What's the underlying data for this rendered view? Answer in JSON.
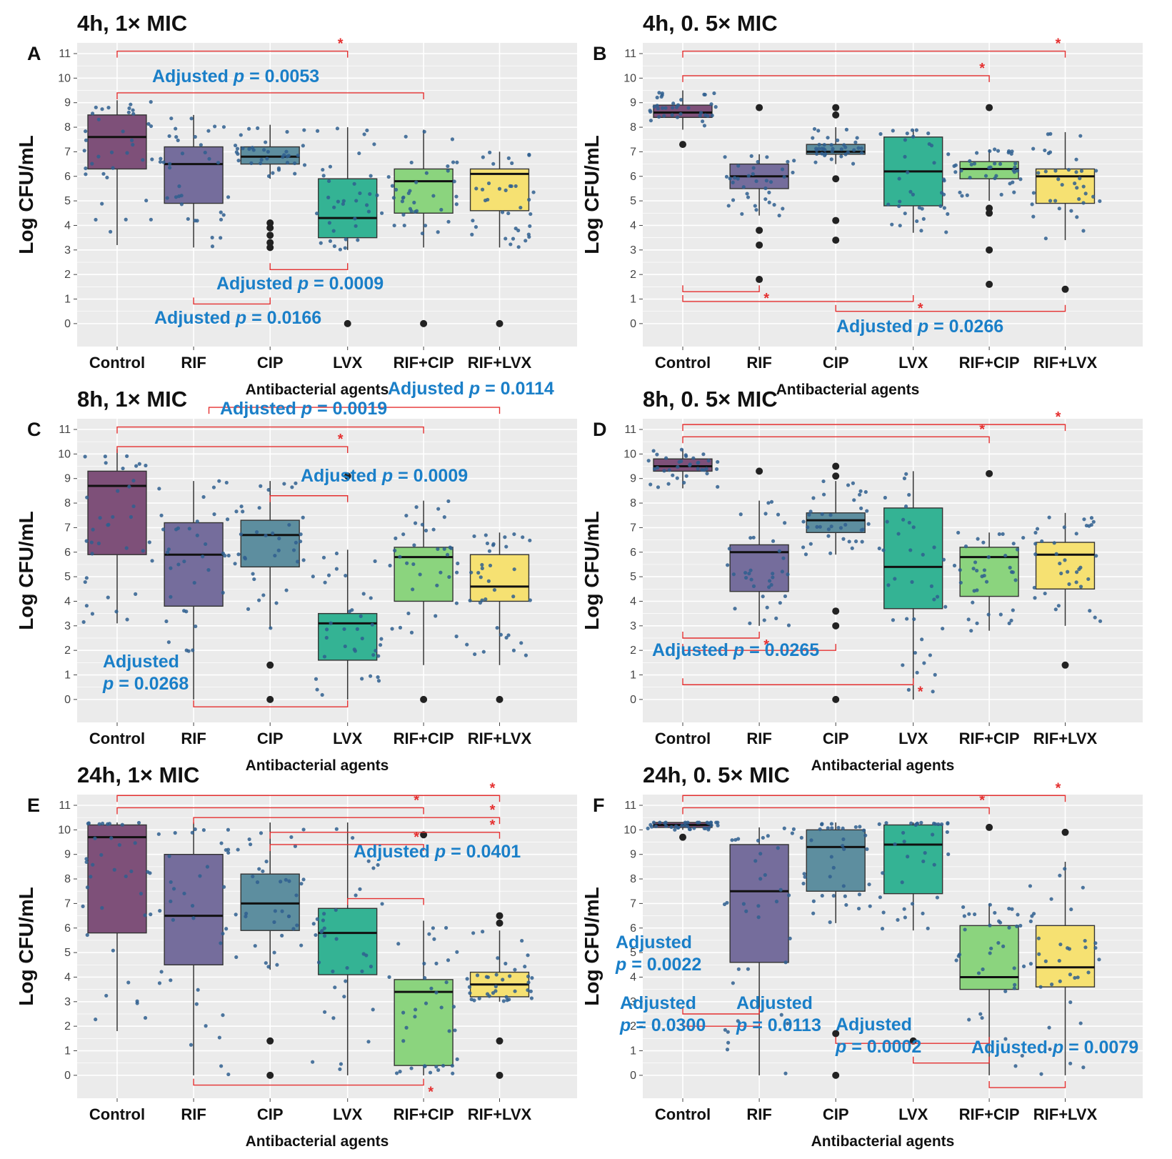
{
  "figure": {
    "ylabel": "Log CFU/mL",
    "xlabel": "Antibacterial agents",
    "yticks": [
      "0",
      "1",
      "2",
      "3",
      "4",
      "5",
      "6",
      "7",
      "8",
      "9",
      "10",
      "11"
    ],
    "colors": {
      "panel_bg": "#ebebeb",
      "grid": "#ffffff",
      "point": "#2f5f8f",
      "outlier": "#222222",
      "bracket": "#e53030",
      "annotation": "#1a7fc8",
      "fill": [
        "#7e5079",
        "#756d9c",
        "#5d8e9f",
        "#34b394",
        "#8bd47e",
        "#f6e172"
      ]
    }
  },
  "chart_data": [
    {
      "panel": "A",
      "type": "box",
      "title": "4h, 1× MIC",
      "categories": [
        "Control",
        "RIF",
        "CIP",
        "LVX",
        "RIF+CIP",
        "RIF+LVX"
      ],
      "xlabel": "Antibacterial agents",
      "ylabel": "Log CFU/mL",
      "ylim": [
        -0.5,
        11.5
      ],
      "boxes": [
        {
          "q1": 6.3,
          "median": 7.6,
          "q3": 8.5,
          "low": 3.2,
          "high": 9.1,
          "outliers": []
        },
        {
          "q1": 4.9,
          "median": 6.5,
          "q3": 7.2,
          "low": 3.1,
          "high": 8.5,
          "outliers": []
        },
        {
          "q1": 6.5,
          "median": 6.8,
          "q3": 7.2,
          "low": 5.9,
          "high": 8.1,
          "outliers": [
            3.1,
            3.3,
            3.6,
            3.9,
            4.1
          ]
        },
        {
          "q1": 3.5,
          "median": 4.3,
          "q3": 5.9,
          "low": 3.0,
          "high": 8.0,
          "outliers": [
            0
          ]
        },
        {
          "q1": 4.5,
          "median": 5.8,
          "q3": 6.3,
          "low": 3.1,
          "high": 7.9,
          "outliers": [
            0
          ]
        },
        {
          "q1": 4.6,
          "median": 6.1,
          "q3": 6.3,
          "low": 3.1,
          "high": 7.0,
          "outliers": [
            0
          ]
        }
      ],
      "annotations": [
        {
          "text": "Adjusted",
          "p": "p",
          "value": "= 0.0053"
        },
        {
          "text": "Adjusted",
          "p": "p",
          "value": "= 0.0009"
        },
        {
          "text": "Adjusted",
          "p": "p",
          "value": "= 0.0166"
        }
      ],
      "stars": [
        "*"
      ]
    },
    {
      "panel": "B",
      "type": "box",
      "title": "4h, 0. 5× MIC",
      "categories": [
        "Control",
        "RIF",
        "CIP",
        "LVX",
        "RIF+CIP",
        "RIF+LVX"
      ],
      "xlabel": "Antibacterial agents",
      "ylabel": "Log CFU/mL",
      "ylim": [
        -0.5,
        11.5
      ],
      "boxes": [
        {
          "q1": 8.4,
          "median": 8.6,
          "q3": 8.9,
          "low": 7.9,
          "high": 9.5,
          "outliers": [
            7.3
          ]
        },
        {
          "q1": 5.5,
          "median": 6.0,
          "q3": 6.5,
          "low": 4.4,
          "high": 6.9,
          "outliers": [
            1.8,
            3.2,
            3.8,
            8.8
          ]
        },
        {
          "q1": 6.9,
          "median": 7.0,
          "q3": 7.3,
          "low": 6.5,
          "high": 8.0,
          "outliers": [
            3.4,
            4.2,
            5.9,
            8.5,
            8.8
          ]
        },
        {
          "q1": 4.8,
          "median": 6.2,
          "q3": 7.6,
          "low": 3.7,
          "high": 7.9,
          "outliers": []
        },
        {
          "q1": 5.9,
          "median": 6.3,
          "q3": 6.6,
          "low": 5.0,
          "high": 7.1,
          "outliers": [
            1.6,
            3.0,
            4.5,
            4.7,
            8.8
          ]
        },
        {
          "q1": 4.9,
          "median": 6.0,
          "q3": 6.3,
          "low": 3.4,
          "high": 7.8,
          "outliers": [
            1.4
          ]
        }
      ],
      "annotations": [
        {
          "text": "Adjusted",
          "p": "p",
          "value": "= 0.0266"
        }
      ],
      "stars": [
        "*",
        "*",
        "*",
        "*"
      ]
    },
    {
      "panel": "C",
      "type": "box",
      "title": "8h, 1× MIC",
      "categories": [
        "Control",
        "RIF",
        "CIP",
        "LVX",
        "RIF+CIP",
        "RIF+LVX"
      ],
      "xlabel": "Antibacterial agents",
      "ylabel": "Log CFU/mL",
      "ylim": [
        -0.5,
        11.5
      ],
      "boxes": [
        {
          "q1": 5.9,
          "median": 8.7,
          "q3": 9.3,
          "low": 3.1,
          "high": 10.2,
          "outliers": []
        },
        {
          "q1": 3.8,
          "median": 5.9,
          "q3": 7.2,
          "low": 0,
          "high": 8.9,
          "outliers": []
        },
        {
          "q1": 5.4,
          "median": 6.7,
          "q3": 7.3,
          "low": 2.9,
          "high": 8.9,
          "outliers": [
            0,
            1.4
          ]
        },
        {
          "q1": 1.6,
          "median": 3.1,
          "q3": 3.5,
          "low": 0,
          "high": 6.1,
          "outliers": [
            9.1
          ]
        },
        {
          "q1": 4.0,
          "median": 5.8,
          "q3": 6.2,
          "low": 1.4,
          "high": 8.1,
          "outliers": [
            0
          ]
        },
        {
          "q1": 4.0,
          "median": 4.6,
          "q3": 5.9,
          "low": 1.4,
          "high": 6.8,
          "outliers": [
            0
          ]
        }
      ],
      "annotations": [
        {
          "text": "Adjusted",
          "p": "p",
          "value": "= 0.0114"
        },
        {
          "text": "Adjusted",
          "p": "p",
          "value": "= 0.0019"
        },
        {
          "text": "Adjusted",
          "p": "p",
          "value": "= 0.0009"
        },
        {
          "text": "Adjusted",
          "p": "p",
          "value": "= 0.0268"
        }
      ],
      "stars": [
        "*"
      ]
    },
    {
      "panel": "D",
      "type": "box",
      "title": "8h, 0. 5× MIC",
      "categories": [
        "Control",
        "RIF",
        "CIP",
        "LVX",
        "RIF+CIP",
        "RIF+LVX"
      ],
      "xlabel": "Antibacterial agents",
      "ylabel": "Log CFU/mL",
      "ylim": [
        -0.5,
        11.5
      ],
      "boxes": [
        {
          "q1": 9.3,
          "median": 9.5,
          "q3": 9.8,
          "low": 8.6,
          "high": 10.2,
          "outliers": []
        },
        {
          "q1": 4.4,
          "median": 6.0,
          "q3": 6.3,
          "low": 3.0,
          "high": 8.1,
          "outliers": [
            9.3
          ]
        },
        {
          "q1": 6.8,
          "median": 7.3,
          "q3": 7.6,
          "low": 5.9,
          "high": 8.9,
          "outliers": [
            0,
            3.0,
            3.6,
            9.1,
            9.5
          ]
        },
        {
          "q1": 3.7,
          "median": 5.4,
          "q3": 7.8,
          "low": 0,
          "high": 9.3,
          "outliers": []
        },
        {
          "q1": 4.2,
          "median": 5.8,
          "q3": 6.2,
          "low": 2.8,
          "high": 6.8,
          "outliers": [
            9.2
          ]
        },
        {
          "q1": 4.5,
          "median": 5.9,
          "q3": 6.4,
          "low": 3.0,
          "high": 7.6,
          "outliers": [
            1.4
          ]
        }
      ],
      "annotations": [
        {
          "text": "Adjusted",
          "p": "p",
          "value": "= 0.0265"
        }
      ],
      "stars": [
        "*",
        "*",
        "*",
        "*"
      ]
    },
    {
      "panel": "E",
      "type": "box",
      "title": "24h, 1× MIC",
      "categories": [
        "Control",
        "RIF",
        "CIP",
        "LVX",
        "RIF+CIP",
        "RIF+LVX"
      ],
      "xlabel": "Antibacterial agents",
      "ylabel": "Log CFU/mL",
      "ylim": [
        -0.5,
        11.5
      ],
      "boxes": [
        {
          "q1": 5.8,
          "median": 9.7,
          "q3": 10.2,
          "low": 1.8,
          "high": 10.3,
          "outliers": []
        },
        {
          "q1": 4.5,
          "median": 6.5,
          "q3": 9.0,
          "low": 0,
          "high": 10.3,
          "outliers": []
        },
        {
          "q1": 5.9,
          "median": 7.0,
          "q3": 8.2,
          "low": 4.3,
          "high": 10.3,
          "outliers": [
            0,
            1.4
          ]
        },
        {
          "q1": 4.1,
          "median": 5.8,
          "q3": 6.8,
          "low": 0,
          "high": 10.3,
          "outliers": []
        },
        {
          "q1": 0.4,
          "median": 3.4,
          "q3": 3.9,
          "low": 0,
          "high": 6.3,
          "outliers": [
            9.8
          ]
        },
        {
          "q1": 3.2,
          "median": 3.7,
          "q3": 4.2,
          "low": 3.0,
          "high": 5.9,
          "outliers": [
            0,
            1.4,
            6.2,
            6.5
          ]
        }
      ],
      "annotations": [
        {
          "text": "Adjusted",
          "p": "p",
          "value": "= 0.0401"
        }
      ],
      "stars": [
        "*",
        "*",
        "*",
        "*",
        "*",
        "*"
      ]
    },
    {
      "panel": "F",
      "type": "box",
      "title": "24h, 0. 5× MIC",
      "categories": [
        "Control",
        "RIF",
        "CIP",
        "LVX",
        "RIF+CIP",
        "RIF+LVX"
      ],
      "xlabel": "Antibacterial agents",
      "ylabel": "Log CFU/mL",
      "ylim": [
        -0.5,
        11.5
      ],
      "boxes": [
        {
          "q1": 10.1,
          "median": 10.2,
          "q3": 10.3,
          "low": 10.0,
          "high": 10.3,
          "outliers": [
            9.7
          ]
        },
        {
          "q1": 4.6,
          "median": 7.5,
          "q3": 9.4,
          "low": 0,
          "high": 10.1,
          "outliers": []
        },
        {
          "q1": 7.5,
          "median": 9.3,
          "q3": 10.0,
          "low": 6.2,
          "high": 10.3,
          "outliers": [
            0,
            1.7
          ]
        },
        {
          "q1": 7.4,
          "median": 9.4,
          "q3": 10.2,
          "low": 5.9,
          "high": 10.3,
          "outliers": [
            1.4
          ]
        },
        {
          "q1": 3.5,
          "median": 4.0,
          "q3": 6.1,
          "low": 0,
          "high": 7.0,
          "outliers": [
            10.1
          ]
        },
        {
          "q1": 3.6,
          "median": 4.4,
          "q3": 6.1,
          "low": 0,
          "high": 8.7,
          "outliers": [
            9.9
          ]
        }
      ],
      "annotations": [
        {
          "text": "Adjusted",
          "p": "p",
          "value": "= 0.0022"
        },
        {
          "text": "Adjusted",
          "p": "p",
          "value": "= 0.0300"
        },
        {
          "text": "Adjusted",
          "p": "p",
          "value": "= 0.0113"
        },
        {
          "text": "Adjusted",
          "p": "p",
          "value": "= 0.0002"
        },
        {
          "text": "Adjusted",
          "p": "p",
          "value": "= 0.0079"
        }
      ],
      "stars": [
        "*",
        "*"
      ]
    }
  ]
}
